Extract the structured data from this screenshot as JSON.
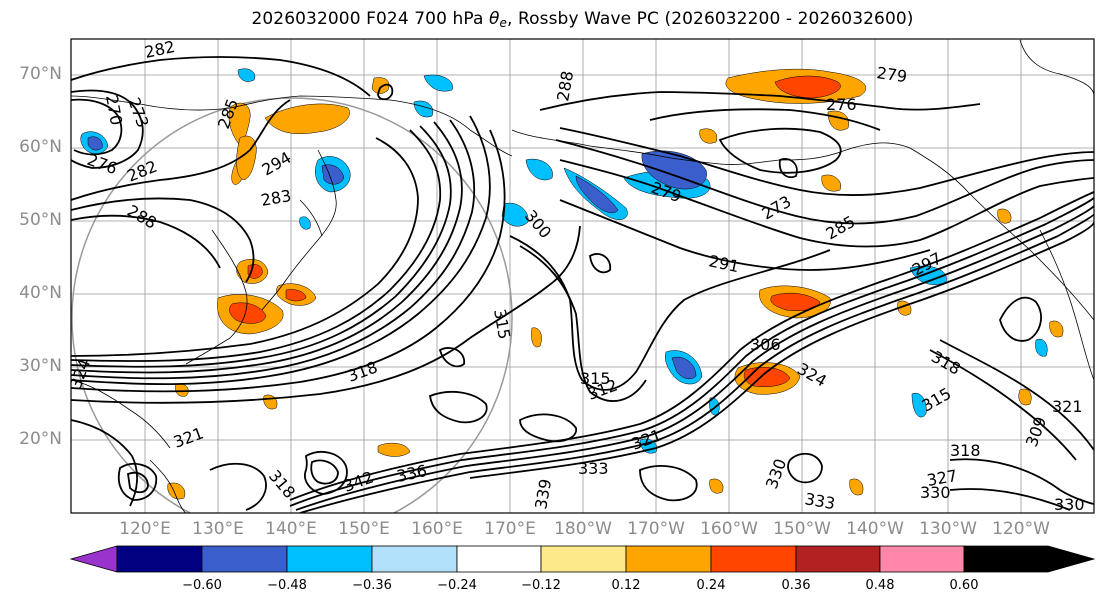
{
  "title": {
    "prefix": "2026032000 F024 700 hPa ",
    "symbol": "θ",
    "subscript": "e",
    "suffix": ", Rossby Wave PC (2026032200 - 2026032600)"
  },
  "lat_labels": [
    "70°N",
    "60°N",
    "50°N",
    "40°N",
    "30°N",
    "20°N"
  ],
  "lon_labels": [
    "120°E",
    "130°E",
    "140°E",
    "150°E",
    "160°E",
    "170°E",
    "180°W",
    "170°W",
    "160°W",
    "150°W",
    "140°W",
    "130°W",
    "120°W"
  ],
  "contour_labels": [
    "282",
    "279",
    "273",
    "270",
    "276",
    "282",
    "285",
    "288",
    "294",
    "283",
    "288",
    "300",
    "276",
    "279",
    "273",
    "285",
    "291",
    "297",
    "315",
    "318",
    "306",
    "324",
    "318",
    "315",
    "312",
    "315",
    "321",
    "321",
    "327",
    "330",
    "333",
    "330",
    "333",
    "318",
    "330",
    "342",
    "336",
    "339",
    "324",
    "321",
    "309",
    "318"
  ],
  "colorbar": {
    "ticks": [
      "−0.60",
      "−0.48",
      "−0.36",
      "−0.24",
      "−0.12",
      "0.12",
      "0.24",
      "0.36",
      "0.48",
      "0.60"
    ],
    "colors": [
      "#9933cc",
      "#000080",
      "#3a5fcd",
      "#00bfff",
      "#b0e0fa",
      "#ffffff",
      "#fee98a",
      "#ffa500",
      "#ff4500",
      "#b22222",
      "#ff88aa"
    ]
  }
}
